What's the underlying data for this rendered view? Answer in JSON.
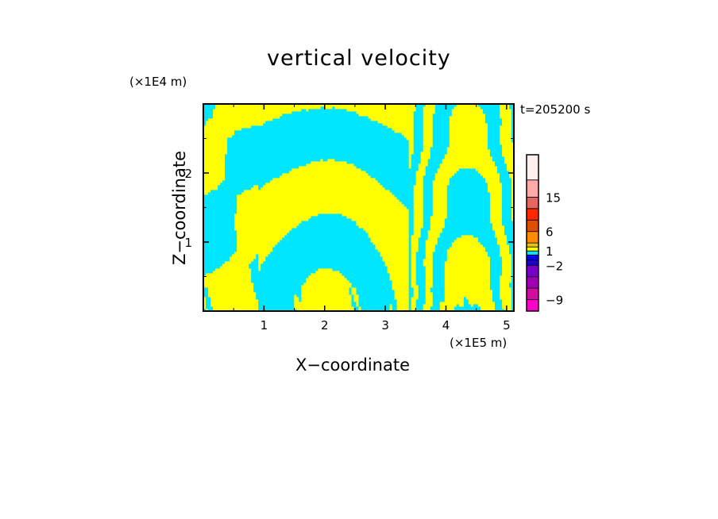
{
  "chart_data": {
    "type": "heatmap",
    "title": "vertical velocity",
    "xlabel": "X−coordinate",
    "ylabel": "Z−coordinate",
    "x_unit": "(×1E5 m)",
    "z_unit": "(×1E4 m)",
    "time_label": "t=205200 s",
    "xlim": [
      0,
      5.12
    ],
    "ylim": [
      0,
      3.0
    ],
    "x_ticks": [
      1,
      2,
      3,
      4,
      5
    ],
    "y_ticks": [
      1,
      2
    ],
    "colorbar": {
      "levels": [
        -12,
        -9,
        -6,
        -4,
        -2,
        -1,
        0,
        1,
        2,
        4,
        6,
        9,
        12,
        15,
        18,
        24
      ],
      "colors": [
        "#ff00c8",
        "#d20ca0",
        "#a000b4",
        "#7800c8",
        "#1e00c8",
        "#0000ff",
        "#00e6ff",
        "#ffff00",
        "#e6c800",
        "#ff8c00",
        "#dc5000",
        "#ff2800",
        "#e66464",
        "#ffaaaa",
        "#fff0f0"
      ],
      "tick_labels": [
        "-9",
        "−2",
        "1",
        "6",
        "15"
      ],
      "tick_values": [
        -9,
        -2,
        1,
        6,
        15
      ]
    },
    "positive_color": "#ffff00",
    "negative_color": "#00e6ff"
  }
}
